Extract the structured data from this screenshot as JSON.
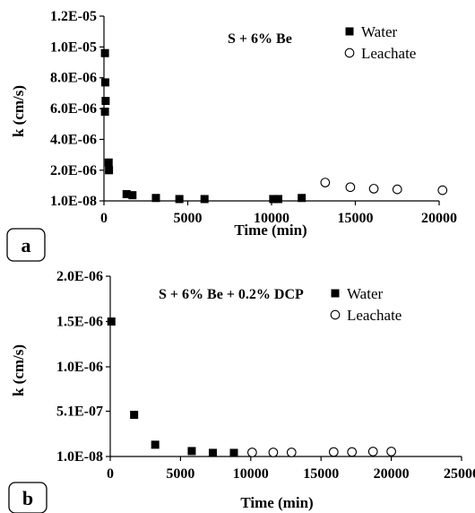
{
  "chart_data": [
    {
      "type": "scatter",
      "panel_label": "a",
      "annotation": "S + 6% Be",
      "xlabel": "Time (min)",
      "ylabel": "k (cm/s)",
      "xlim": [
        0,
        20000
      ],
      "ylim": [
        1e-08,
        1.2e-05
      ],
      "x_ticks": [
        0,
        5000,
        10000,
        15000,
        20000
      ],
      "x_tick_labels": [
        "0",
        "5000",
        "10000",
        "15000",
        "20000"
      ],
      "y_ticks": [
        1e-08,
        2e-06,
        4e-06,
        6e-06,
        8e-06,
        1e-05,
        1.2e-05
      ],
      "y_tick_labels": [
        "1.0E-08",
        "2.0E-06",
        "4.0E-06",
        "6.0E-06",
        "8.0E-06",
        "1.0E-05",
        "1.2E-05"
      ],
      "legend_position": "top-right",
      "grid": false,
      "series": [
        {
          "name": "Water",
          "marker": "filled-square",
          "color": "#000000",
          "points": [
            {
              "x": 60,
              "y": 9.6e-06
            },
            {
              "x": 80,
              "y": 7.7e-06
            },
            {
              "x": 100,
              "y": 6.5e-06
            },
            {
              "x": 60,
              "y": 5.8e-06
            },
            {
              "x": 280,
              "y": 2.5e-06
            },
            {
              "x": 300,
              "y": 2e-06
            },
            {
              "x": 1350,
              "y": 4.5e-07
            },
            {
              "x": 1700,
              "y": 3.8e-07
            },
            {
              "x": 3100,
              "y": 2e-07
            },
            {
              "x": 4500,
              "y": 1.3e-07
            },
            {
              "x": 6000,
              "y": 1.3e-07
            },
            {
              "x": 10100,
              "y": 1.3e-07
            },
            {
              "x": 10400,
              "y": 1.3e-07
            },
            {
              "x": 11800,
              "y": 2e-07
            }
          ]
        },
        {
          "name": "Leachate",
          "marker": "open-circle",
          "color": "#000000",
          "points": [
            {
              "x": 13200,
              "y": 1.2e-06
            },
            {
              "x": 14700,
              "y": 9e-07
            },
            {
              "x": 16100,
              "y": 8e-07
            },
            {
              "x": 17500,
              "y": 7.6e-07
            },
            {
              "x": 20200,
              "y": 7e-07
            }
          ]
        }
      ]
    },
    {
      "type": "scatter",
      "panel_label": "b",
      "annotation": "S + 6% Be + 0.2% DCP",
      "xlabel": "Time (min)",
      "ylabel": "k (cm/s)",
      "xlim": [
        0,
        25000
      ],
      "ylim": [
        1e-08,
        2e-06
      ],
      "x_ticks": [
        0,
        5000,
        10000,
        15000,
        20000,
        25000
      ],
      "x_tick_labels": [
        "0",
        "5000",
        "10000",
        "15000",
        "20000",
        "25000"
      ],
      "y_ticks": [
        1e-08,
        5.1e-07,
        1e-06,
        1.5e-06,
        2e-06
      ],
      "y_tick_labels": [
        "1.0E-08",
        "5.1E-07",
        "1.0E-06",
        "1.5E-06",
        "2.0E-06"
      ],
      "legend_position": "top-right",
      "grid": false,
      "series": [
        {
          "name": "Water",
          "marker": "filled-square",
          "color": "#000000",
          "points": [
            {
              "x": 80,
              "y": 1.5e-06
            },
            {
              "x": 1700,
              "y": 4.7e-07
            },
            {
              "x": 3200,
              "y": 1.4e-07
            },
            {
              "x": 5800,
              "y": 7e-08
            },
            {
              "x": 7300,
              "y": 5e-08
            },
            {
              "x": 8800,
              "y": 5e-08
            }
          ]
        },
        {
          "name": "Leachate",
          "marker": "open-circle",
          "color": "#000000",
          "points": [
            {
              "x": 10100,
              "y": 5.5e-08
            },
            {
              "x": 11600,
              "y": 5.5e-08
            },
            {
              "x": 12900,
              "y": 5.5e-08
            },
            {
              "x": 15900,
              "y": 6e-08
            },
            {
              "x": 17200,
              "y": 6e-08
            },
            {
              "x": 18700,
              "y": 6.5e-08
            },
            {
              "x": 20000,
              "y": 6.5e-08
            }
          ]
        }
      ]
    }
  ]
}
